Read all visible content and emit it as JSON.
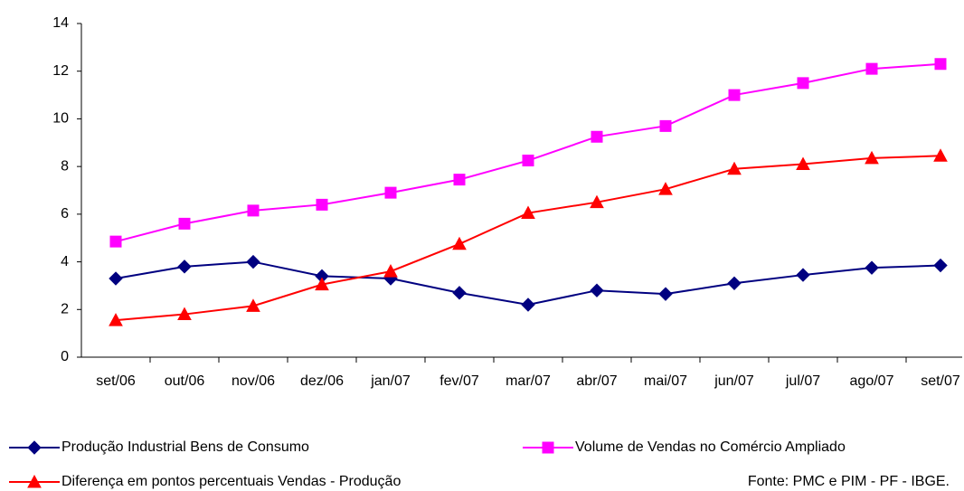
{
  "chart_data": {
    "type": "line",
    "categories": [
      "set/06",
      "out/06",
      "nov/06",
      "dez/06",
      "jan/07",
      "fev/07",
      "mar/07",
      "abr/07",
      "mai/07",
      "jun/07",
      "jul/07",
      "ago/07",
      "set/07"
    ],
    "series": [
      {
        "name": "Produção Industrial Bens de Consumo",
        "color": "#000080",
        "marker": "diamond",
        "values": [
          3.3,
          3.8,
          4.0,
          3.4,
          3.3,
          2.7,
          2.2,
          2.8,
          2.65,
          3.1,
          3.45,
          3.75,
          3.85
        ]
      },
      {
        "name": "Volume de Vendas no Comércio Ampliado",
        "color": "#ff00ff",
        "marker": "square",
        "values": [
          4.85,
          5.6,
          6.15,
          6.4,
          6.9,
          7.45,
          8.25,
          9.25,
          9.7,
          11.0,
          11.5,
          12.1,
          12.3
        ]
      },
      {
        "name": "Diferença em pontos percentuais Vendas - Produção",
        "color": "#ff0000",
        "marker": "triangle",
        "values": [
          1.55,
          1.8,
          2.15,
          3.05,
          3.6,
          4.75,
          6.05,
          6.5,
          7.05,
          7.9,
          8.1,
          8.35,
          8.45
        ]
      }
    ],
    "ylim": [
      0,
      14
    ],
    "yticks": [
      0,
      2,
      4,
      6,
      8,
      10,
      12,
      14
    ],
    "grid": false,
    "source": "Fonte: PMC e PIM - PF - IBGE."
  }
}
